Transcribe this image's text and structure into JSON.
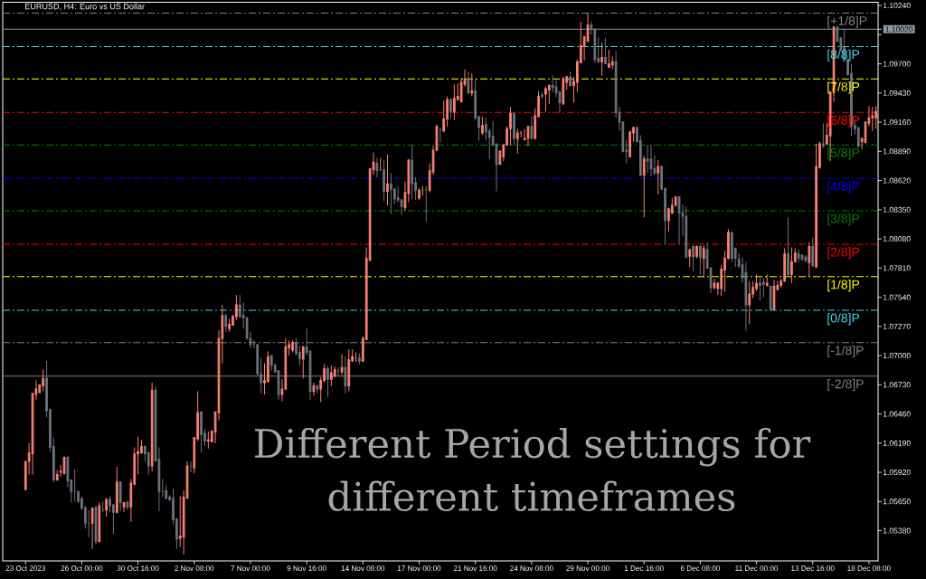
{
  "chart_data": {
    "type": "candlestick",
    "title": "EURUSD, H4: Euro vs US Dollar",
    "annotations": [
      "Different Period settings for different timeframes"
    ],
    "categories": [
      "23 Oct 2023",
      null,
      null,
      null,
      null,
      null,
      null,
      null,
      null,
      null,
      null,
      null,
      null,
      null,
      null,
      null,
      "26 Oct 00:00",
      null,
      null,
      null,
      null,
      null,
      null,
      null,
      null,
      null,
      null,
      null,
      null,
      null,
      null,
      null,
      "30 Oct 16:00",
      null,
      null,
      null,
      null,
      null,
      null,
      null,
      null,
      null,
      null,
      null,
      null,
      null,
      null,
      null,
      "2 Nov 08:00",
      null,
      null,
      null,
      null,
      null,
      null,
      null,
      null,
      null,
      null,
      null,
      null,
      null,
      null,
      null,
      "7 Nov 00:00",
      null,
      null,
      null,
      null,
      null,
      null,
      null,
      null,
      null,
      null,
      null,
      null,
      null,
      null,
      null,
      "9 Nov 16:00",
      null,
      null,
      null,
      null,
      null,
      null,
      null,
      null,
      null,
      null,
      null,
      null,
      null,
      null,
      null,
      "14 Nov 08:00",
      null,
      null,
      null,
      null,
      null,
      null,
      null,
      null,
      null,
      null,
      null,
      null,
      null,
      null,
      null,
      "17 Nov 00:00",
      null,
      null,
      null,
      null,
      null,
      null,
      null,
      null,
      null,
      null,
      null,
      null,
      null,
      null,
      null,
      "21 Nov 16:00",
      null,
      null,
      null,
      null,
      null,
      null,
      null,
      null,
      null,
      null,
      null,
      null,
      null,
      null,
      null,
      "24 Nov 08:00",
      null,
      null,
      null,
      null,
      null,
      null,
      null,
      null,
      null,
      null,
      null,
      null,
      null,
      null,
      null,
      "29 Nov 00:00",
      null,
      null,
      null,
      null,
      null,
      null,
      null,
      null,
      null,
      null,
      null,
      null,
      null,
      null,
      null,
      "1 Dec 16:00",
      null,
      null,
      null,
      null,
      null,
      null,
      null,
      null,
      null,
      null,
      null,
      null,
      null,
      null,
      null,
      "6 Dec 08:00",
      null,
      null,
      null,
      null,
      null,
      null,
      null,
      null,
      null,
      null,
      null,
      null,
      null,
      null,
      null,
      "11 Dec 00:00",
      null,
      null,
      null,
      null,
      null,
      null,
      null,
      null,
      null,
      null,
      null,
      null,
      null,
      null,
      null,
      "13 Dec 16:00",
      null,
      null,
      null,
      null,
      null,
      null,
      null,
      null,
      null,
      null,
      null,
      null,
      null,
      null,
      null,
      "18 Dec 08:00",
      null,
      null
    ],
    "ohlc": [
      [
        1.0576,
        1.0602,
        1.0576,
        1.0602
      ],
      [
        1.0602,
        1.0619,
        1.059,
        1.061
      ],
      [
        1.0609,
        1.0665,
        1.059,
        1.0665
      ],
      [
        1.0664,
        1.0677,
        1.0659,
        1.0669
      ],
      [
        1.0666,
        1.0673,
        1.0665,
        1.0673
      ],
      [
        1.0672,
        1.0687,
        1.0667,
        1.0679
      ],
      [
        1.0679,
        1.0695,
        1.0643,
        1.0649
      ],
      [
        1.065,
        1.0651,
        1.0611,
        1.0615
      ],
      [
        1.0616,
        1.0624,
        1.0583,
        1.0585
      ],
      [
        1.0585,
        1.0594,
        1.0584,
        1.059
      ],
      [
        1.0592,
        1.0599,
        1.0588,
        1.0593
      ],
      [
        1.0591,
        1.0606,
        1.059,
        1.0606
      ],
      [
        1.0606,
        1.0606,
        1.0578,
        1.0584
      ],
      [
        1.0585,
        1.0585,
        1.0564,
        1.0574
      ],
      [
        1.0574,
        1.0595,
        1.0565,
        1.0574
      ],
      [
        1.0574,
        1.0575,
        1.0564,
        1.0565
      ],
      [
        1.0568,
        1.0569,
        1.0557,
        1.0559
      ],
      [
        1.0559,
        1.0561,
        1.054,
        1.0545
      ],
      [
        1.0545,
        1.0557,
        1.0532,
        1.0545
      ],
      [
        1.0545,
        1.0559,
        1.0521,
        1.0559
      ],
      [
        1.056,
        1.056,
        1.0525,
        1.0528
      ],
      [
        1.0528,
        1.0564,
        1.0527,
        1.0561
      ],
      [
        1.0557,
        1.0565,
        1.0555,
        1.0557
      ],
      [
        1.0557,
        1.0568,
        1.0551,
        1.0567
      ],
      [
        1.0567,
        1.057,
        1.0555,
        1.0561
      ],
      [
        1.0562,
        1.0562,
        1.0535,
        1.0555
      ],
      [
        1.0555,
        1.0597,
        1.0554,
        1.0583
      ],
      [
        1.0583,
        1.0583,
        1.0556,
        1.0564
      ],
      [
        1.056,
        1.0564,
        1.0555,
        1.0564
      ],
      [
        1.0564,
        1.0566,
        1.0557,
        1.056
      ],
      [
        1.056,
        1.0586,
        1.0546,
        1.0582
      ],
      [
        1.0581,
        1.0615,
        1.058,
        1.0609
      ],
      [
        1.0609,
        1.0625,
        1.059,
        1.0611
      ],
      [
        1.061,
        1.0622,
        1.0609,
        1.0616
      ],
      [
        1.0616,
        1.0617,
        1.0602,
        1.0609
      ],
      [
        1.061,
        1.0611,
        1.059,
        1.0598
      ],
      [
        1.0598,
        1.0675,
        1.0593,
        1.0668
      ],
      [
        1.0668,
        1.0671,
        1.0601,
        1.0603
      ],
      [
        1.0604,
        1.0615,
        1.0556,
        1.0574
      ],
      [
        1.0574,
        1.0586,
        1.0569,
        1.0574
      ],
      [
        1.0575,
        1.058,
        1.0567,
        1.0568
      ],
      [
        1.0569,
        1.0571,
        1.0565,
        1.0567
      ],
      [
        1.0568,
        1.0577,
        1.0544,
        1.0548
      ],
      [
        1.0549,
        1.0549,
        1.0521,
        1.053
      ],
      [
        1.0531,
        1.057,
        1.0523,
        1.0533
      ],
      [
        1.0532,
        1.0575,
        1.0516,
        1.0569
      ],
      [
        1.0568,
        1.0602,
        1.0568,
        1.0598
      ],
      [
        1.0597,
        1.0602,
        1.0592,
        1.0597
      ],
      [
        1.0596,
        1.0625,
        1.0591,
        1.0624
      ],
      [
        1.0623,
        1.0667,
        1.0621,
        1.0647
      ],
      [
        1.0648,
        1.0648,
        1.061,
        1.0627
      ],
      [
        1.0628,
        1.0632,
        1.0616,
        1.0621
      ],
      [
        1.0621,
        1.063,
        1.0614,
        1.0622
      ],
      [
        1.062,
        1.0631,
        1.062,
        1.063
      ],
      [
        1.0629,
        1.0648,
        1.0619,
        1.0648
      ],
      [
        1.0647,
        1.0724,
        1.064,
        1.0716
      ],
      [
        1.0716,
        1.0747,
        1.0693,
        1.0737
      ],
      [
        1.0737,
        1.0739,
        1.0722,
        1.0727
      ],
      [
        1.0725,
        1.0734,
        1.0722,
        1.0729
      ],
      [
        1.0728,
        1.0738,
        1.0728,
        1.0736
      ],
      [
        1.0736,
        1.0756,
        1.0733,
        1.0747
      ],
      [
        1.0747,
        1.0756,
        1.0735,
        1.0736
      ],
      [
        1.0737,
        1.0749,
        1.0725,
        1.0735
      ],
      [
        1.0735,
        1.0736,
        1.0715,
        1.0716
      ],
      [
        1.0716,
        1.0722,
        1.0707,
        1.071
      ],
      [
        1.071,
        1.0714,
        1.0707,
        1.071
      ],
      [
        1.071,
        1.071,
        1.0682,
        1.0683
      ],
      [
        1.0683,
        1.0698,
        1.0665,
        1.0675
      ],
      [
        1.0675,
        1.0693,
        1.0664,
        1.0677
      ],
      [
        1.0676,
        1.0704,
        1.0675,
        1.0699
      ],
      [
        1.07,
        1.07,
        1.0686,
        1.0691
      ],
      [
        1.0691,
        1.0693,
        1.0684,
        1.0685
      ],
      [
        1.0686,
        1.0686,
        1.0659,
        1.0664
      ],
      [
        1.0664,
        1.0678,
        1.0658,
        1.0669
      ],
      [
        1.0669,
        1.0716,
        1.0668,
        1.0708
      ],
      [
        1.0707,
        1.0714,
        1.07,
        1.071
      ],
      [
        1.0705,
        1.0714,
        1.0703,
        1.0712
      ],
      [
        1.0712,
        1.0716,
        1.07,
        1.0702
      ],
      [
        1.0703,
        1.0709,
        1.0691,
        1.0697
      ],
      [
        1.0697,
        1.0709,
        1.0679,
        1.0708
      ],
      [
        1.0708,
        1.0725,
        1.07,
        1.0703
      ],
      [
        1.0704,
        1.0705,
        1.0659,
        1.0667
      ],
      [
        1.0667,
        1.0675,
        1.0663,
        1.0672
      ],
      [
        1.0672,
        1.0673,
        1.0665,
        1.0669
      ],
      [
        1.0669,
        1.068,
        1.0657,
        1.0677
      ],
      [
        1.0677,
        1.0692,
        1.0675,
        1.0688
      ],
      [
        1.0688,
        1.069,
        1.0662,
        1.0678
      ],
      [
        1.0678,
        1.0691,
        1.0672,
        1.0684
      ],
      [
        1.0681,
        1.069,
        1.068,
        1.0687
      ],
      [
        1.0686,
        1.0689,
        1.0681,
        1.0686
      ],
      [
        1.0685,
        1.0701,
        1.0682,
        1.0689
      ],
      [
        1.0689,
        1.0699,
        1.0665,
        1.0672
      ],
      [
        1.0672,
        1.0706,
        1.0667,
        1.0696
      ],
      [
        1.0695,
        1.0706,
        1.0694,
        1.0699
      ],
      [
        1.0698,
        1.0703,
        1.0694,
        1.0698
      ],
      [
        1.0698,
        1.0702,
        1.0692,
        1.0695
      ],
      [
        1.0695,
        1.0718,
        1.0694,
        1.0716
      ],
      [
        1.0715,
        1.08,
        1.0714,
        1.079
      ],
      [
        1.0788,
        1.0873,
        1.0788,
        1.0873
      ],
      [
        1.0872,
        1.0888,
        1.0867,
        1.0879
      ],
      [
        1.0878,
        1.0883,
        1.0865,
        1.0871
      ],
      [
        1.0872,
        1.0883,
        1.0871,
        1.0872
      ],
      [
        1.0872,
        1.0881,
        1.0843,
        1.0852
      ],
      [
        1.0852,
        1.0886,
        1.0839,
        1.0859
      ],
      [
        1.0859,
        1.0869,
        1.0831,
        1.0854
      ],
      [
        1.0854,
        1.0855,
        1.084,
        1.0845
      ],
      [
        1.0846,
        1.0856,
        1.0842,
        1.0844
      ],
      [
        1.0844,
        1.0845,
        1.083,
        1.0838
      ],
      [
        1.0837,
        1.0861,
        1.0834,
        1.0851
      ],
      [
        1.085,
        1.0882,
        1.0842,
        1.0881
      ],
      [
        1.0881,
        1.0895,
        1.0845,
        1.0859
      ],
      [
        1.086,
        1.0865,
        1.0844,
        1.0853
      ],
      [
        1.0846,
        1.0855,
        1.0844,
        1.0853
      ],
      [
        1.0853,
        1.0857,
        1.0848,
        1.0853
      ],
      [
        1.0853,
        1.0857,
        1.0824,
        1.0853
      ],
      [
        1.0853,
        1.0878,
        1.0851,
        1.0871
      ],
      [
        1.087,
        1.0894,
        1.0867,
        1.089
      ],
      [
        1.089,
        1.0914,
        1.0889,
        1.0912
      ],
      [
        1.0909,
        1.0911,
        1.0897,
        1.0909
      ],
      [
        1.0908,
        1.0936,
        1.0907,
        1.0919
      ],
      [
        1.0919,
        1.094,
        1.0912,
        1.0937
      ],
      [
        1.0937,
        1.0938,
        1.092,
        1.0926
      ],
      [
        1.0926,
        1.0951,
        1.0918,
        1.0938
      ],
      [
        1.0937,
        1.0952,
        1.0936,
        1.094
      ],
      [
        1.0935,
        1.0957,
        1.0934,
        1.0953
      ],
      [
        1.0951,
        1.0965,
        1.0949,
        1.0956
      ],
      [
        1.0956,
        1.0963,
        1.0942,
        1.0943
      ],
      [
        1.0943,
        1.0961,
        1.094,
        1.0945
      ],
      [
        1.0945,
        1.0956,
        1.0918,
        1.092
      ],
      [
        1.0921,
        1.0922,
        1.0899,
        1.0911
      ],
      [
        1.0906,
        1.0921,
        1.0904,
        1.0913
      ],
      [
        1.0914,
        1.092,
        1.0899,
        1.0907
      ],
      [
        1.0908,
        1.091,
        1.0882,
        1.0902
      ],
      [
        1.0903,
        1.0917,
        1.0894,
        1.0895
      ],
      [
        1.0896,
        1.0896,
        1.0852,
        1.0877
      ],
      [
        1.0877,
        1.089,
        1.0877,
        1.0889
      ],
      [
        1.0884,
        1.0896,
        1.088,
        1.0895
      ],
      [
        1.0895,
        1.0912,
        1.0894,
        1.091
      ],
      [
        1.091,
        1.093,
        1.0895,
        1.0924
      ],
      [
        1.0924,
        1.0924,
        1.0896,
        1.0901
      ],
      [
        1.0901,
        1.091,
        1.0887,
        1.0906
      ],
      [
        1.0906,
        1.0908,
        1.0902,
        1.0906
      ],
      [
        1.09,
        1.091,
        1.0899,
        1.0901
      ],
      [
        1.0901,
        1.0912,
        1.0894,
        1.0912
      ],
      [
        1.0912,
        1.0921,
        1.09,
        1.0901
      ],
      [
        1.0901,
        1.0929,
        1.09,
        1.0922
      ],
      [
        1.0921,
        1.0945,
        1.0921,
        1.094
      ],
      [
        1.0941,
        1.0944,
        1.0938,
        1.094
      ],
      [
        1.0942,
        1.0949,
        1.0926,
        1.0947
      ],
      [
        1.0946,
        1.0951,
        1.0933,
        1.095
      ],
      [
        1.095,
        1.0959,
        1.0944,
        1.0948
      ],
      [
        1.0949,
        1.0956,
        1.0939,
        1.0943
      ],
      [
        1.0944,
        1.0945,
        1.0925,
        1.0934
      ],
      [
        1.0933,
        1.0958,
        1.0932,
        1.0956
      ],
      [
        1.0953,
        1.0959,
        1.0946,
        1.0958
      ],
      [
        1.0958,
        1.0963,
        1.0949,
        1.095
      ],
      [
        1.095,
        1.0958,
        1.0934,
        1.0954
      ],
      [
        1.0953,
        1.0974,
        1.0944,
        1.0972
      ],
      [
        1.0971,
        1.1009,
        1.0971,
        1.0987
      ],
      [
        1.0986,
        1.0996,
        1.0973,
        1.0995
      ],
      [
        1.0991,
        1.1017,
        1.099,
        1.1006
      ],
      [
        1.1006,
        1.1009,
        1.0997,
        1.1002
      ],
      [
        1.1002,
        1.1002,
        1.0971,
        1.0974
      ],
      [
        1.0975,
        1.0995,
        1.0971,
        1.0972
      ],
      [
        1.0972,
        1.099,
        1.0959,
        1.0976
      ],
      [
        1.0976,
        1.0994,
        1.097,
        1.097
      ],
      [
        1.0967,
        1.0983,
        1.0966,
        1.097
      ],
      [
        1.0969,
        1.0977,
        1.0965,
        1.0972
      ],
      [
        1.0972,
        1.0982,
        1.092,
        1.0925
      ],
      [
        1.0925,
        1.093,
        1.0908,
        1.0916
      ],
      [
        1.0916,
        1.0917,
        1.0888,
        1.0889
      ],
      [
        1.089,
        1.09,
        1.0878,
        1.0889
      ],
      [
        1.0884,
        1.0908,
        1.0884,
        1.0907
      ],
      [
        1.0906,
        1.0912,
        1.0898,
        1.0911
      ],
      [
        1.0911,
        1.0912,
        1.0897,
        1.0898
      ],
      [
        1.0899,
        1.0904,
        1.0866,
        1.0867
      ],
      [
        1.0867,
        1.0885,
        1.0828,
        1.0882
      ],
      [
        1.0882,
        1.0895,
        1.0869,
        1.088
      ],
      [
        1.0882,
        1.0895,
        1.0866,
        1.0873
      ],
      [
        1.0873,
        1.0885,
        1.0867,
        1.0869
      ],
      [
        1.0869,
        1.0881,
        1.0849,
        1.0875
      ],
      [
        1.0875,
        1.0876,
        1.0853,
        1.0854
      ],
      [
        1.0855,
        1.0855,
        1.0803,
        1.0825
      ],
      [
        1.0825,
        1.0837,
        1.0815,
        1.0836
      ],
      [
        1.0832,
        1.0846,
        1.0831,
        1.0839
      ],
      [
        1.0839,
        1.0847,
        1.0838,
        1.0847
      ],
      [
        1.0847,
        1.0847,
        1.0803,
        1.0832
      ],
      [
        1.0832,
        1.084,
        1.0811,
        1.0829
      ],
      [
        1.0829,
        1.0838,
        1.079,
        1.0791
      ],
      [
        1.0792,
        1.0799,
        1.0782,
        1.0798
      ],
      [
        1.0801,
        1.0802,
        1.0778,
        1.0791
      ],
      [
        1.0792,
        1.0802,
        1.079,
        1.0801
      ],
      [
        1.0801,
        1.0802,
        1.0775,
        1.0791
      ],
      [
        1.079,
        1.0802,
        1.0772,
        1.0799
      ],
      [
        1.0798,
        1.0805,
        1.078,
        1.0781
      ],
      [
        1.0781,
        1.0782,
        1.0758,
        1.0763
      ],
      [
        1.0763,
        1.0771,
        1.0761,
        1.0767
      ],
      [
        1.0762,
        1.0768,
        1.0756,
        1.0767
      ],
      [
        1.0762,
        1.0784,
        1.0755,
        1.078
      ],
      [
        1.0779,
        1.0797,
        1.0759,
        1.079
      ],
      [
        1.079,
        1.0817,
        1.0789,
        1.0814
      ],
      [
        1.0814,
        1.0814,
        1.0787,
        1.079
      ],
      [
        1.0799,
        1.08,
        1.0782,
        1.079
      ],
      [
        1.0789,
        1.0795,
        1.0781,
        1.0783
      ],
      [
        1.0784,
        1.0791,
        1.0767,
        1.0772
      ],
      [
        1.0777,
        1.0787,
        1.0723,
        1.0747
      ],
      [
        1.0747,
        1.0769,
        1.0729,
        1.0757
      ],
      [
        1.0757,
        1.0769,
        1.0753,
        1.0763
      ],
      [
        1.0762,
        1.0775,
        1.076,
        1.0767
      ],
      [
        1.0767,
        1.0774,
        1.0751,
        1.0765
      ],
      [
        1.0768,
        1.0772,
        1.0754,
        1.0766
      ],
      [
        1.0765,
        1.0775,
        1.0764,
        1.0767
      ],
      [
        1.0764,
        1.0765,
        1.0742,
        1.0743
      ],
      [
        1.0743,
        1.077,
        1.0742,
        1.0764
      ],
      [
        1.0761,
        1.0769,
        1.0761,
        1.0765
      ],
      [
        1.0765,
        1.0771,
        1.0763,
        1.0769
      ],
      [
        1.0769,
        1.0799,
        1.0768,
        1.0794
      ],
      [
        1.0794,
        1.0828,
        1.0774,
        1.0775
      ],
      [
        1.0775,
        1.08,
        1.0767,
        1.0787
      ],
      [
        1.0787,
        1.0799,
        1.0786,
        1.0795
      ],
      [
        1.0794,
        1.0798,
        1.0786,
        1.079
      ],
      [
        1.0793,
        1.0794,
        1.0788,
        1.0789
      ],
      [
        1.0791,
        1.0793,
        1.0786,
        1.0788
      ],
      [
        1.0786,
        1.0805,
        1.0773,
        1.0801
      ],
      [
        1.0801,
        1.0809,
        1.0782,
        1.0783
      ],
      [
        1.0782,
        1.0896,
        1.0781,
        1.0875
      ],
      [
        1.0874,
        1.0898,
        1.0873,
        1.0896
      ],
      [
        1.0896,
        1.0915,
        1.0892,
        1.0894
      ],
      [
        1.0896,
        1.0915,
        1.0895,
        1.0904
      ],
      [
        1.0903,
        1.0945,
        1.088,
        1.0944
      ],
      [
        1.0943,
        1.1005,
        1.0935,
        1.1004
      ],
      [
        1.1004,
        1.1005,
        1.099,
        1.0991
      ],
      [
        1.0994,
        1.0995,
        1.0982,
        1.0983
      ],
      [
        1.0986,
        1.1003,
        1.0972,
        1.0973
      ],
      [
        1.0974,
        1.0975,
        1.0959,
        1.096
      ],
      [
        1.0961,
        1.097,
        1.0903,
        1.0912
      ],
      [
        1.0913,
        1.0917,
        1.0905,
        1.091
      ],
      [
        1.0911,
        1.0911,
        1.0892,
        1.0894
      ],
      [
        1.0898,
        1.0902,
        1.0891,
        1.0901
      ],
      [
        1.0897,
        1.0917,
        1.0897,
        1.0916
      ],
      [
        1.0915,
        1.0931,
        1.0912,
        1.092
      ],
      [
        1.092,
        1.093,
        1.0908,
        1.0922
      ],
      [
        1.092,
        1.0931,
        1.091,
        1.0926
      ]
    ],
    "colors": [
      "#fa8072",
      "#fa8072",
      "#fa8072",
      "#fa8072",
      "#fa8072",
      "#fa8072",
      "#6c737d",
      "#6c737d",
      "#6c737d",
      "#fa8072",
      "#fa8072",
      "#fa8072",
      "#6c737d",
      "#6c737d",
      "#6c737d",
      "#6c737d",
      "#6c737d",
      "#6c737d",
      "#6c737d",
      "#fa8072",
      "#6c737d",
      "#fa8072",
      "#6c737d",
      "#fa8072",
      "#6c737d",
      "#6c737d",
      "#fa8072",
      "#6c737d",
      "#fa8072",
      "#6c737d",
      "#fa8072",
      "#fa8072",
      "#fa8072",
      "#fa8072",
      "#6c737d",
      "#6c737d",
      "#fa8072",
      "#6c737d",
      "#6c737d",
      "#6c737d",
      "#6c737d",
      "#6c737d",
      "#6c737d",
      "#6c737d",
      "#fa8072",
      "#fa8072",
      "#fa8072",
      "#6c737d",
      "#fa8072",
      "#fa8072",
      "#6c737d",
      "#6c737d",
      "#fa8072",
      "#fa8072",
      "#fa8072",
      "#fa8072",
      "#fa8072",
      "#6c737d",
      "#fa8072",
      "#fa8072",
      "#fa8072",
      "#6c737d",
      "#6c737d",
      "#6c737d",
      "#6c737d",
      "#6c737d",
      "#6c737d",
      "#6c737d",
      "#fa8072",
      "#fa8072",
      "#6c737d",
      "#6c737d",
      "#6c737d",
      "#fa8072",
      "#fa8072",
      "#fa8072",
      "#fa8072",
      "#6c737d",
      "#6c737d",
      "#fa8072",
      "#6c737d",
      "#6c737d",
      "#fa8072",
      "#6c737d",
      "#fa8072",
      "#fa8072",
      "#6c737d",
      "#fa8072",
      "#fa8072",
      "#6c737d",
      "#fa8072",
      "#6c737d",
      "#fa8072",
      "#fa8072",
      "#fa8072",
      "#6c737d",
      "#fa8072",
      "#fa8072",
      "#fa8072",
      "#fa8072",
      "#6c737d",
      "#fa8072",
      "#6c737d",
      "#fa8072",
      "#6c737d",
      "#6c737d",
      "#6c737d",
      "#6c737d",
      "#fa8072",
      "#fa8072",
      "#6c737d",
      "#6c737d",
      "#fa8072",
      "#fa8072",
      "#6c737d",
      "#fa8072",
      "#fa8072",
      "#fa8072",
      "#6c737d",
      "#fa8072",
      "#fa8072",
      "#6c737d",
      "#fa8072",
      "#fa8072",
      "#fa8072",
      "#fa8072",
      "#6c737d",
      "#fa8072",
      "#6c737d",
      "#6c737d",
      "#fa8072",
      "#6c737d",
      "#6c737d",
      "#6c737d",
      "#6c737d",
      "#fa8072",
      "#fa8072",
      "#fa8072",
      "#fa8072",
      "#6c737d",
      "#fa8072",
      "#fa8072",
      "#fa8072",
      "#fa8072",
      "#6c737d",
      "#fa8072",
      "#fa8072",
      "#6c737d",
      "#fa8072",
      "#fa8072",
      "#6c737d",
      "#6c737d",
      "#6c737d",
      "#fa8072",
      "#fa8072",
      "#6c737d",
      "#fa8072",
      "#fa8072",
      "#fa8072",
      "#fa8072",
      "#fa8072",
      "#6c737d",
      "#6c737d",
      "#6c737d",
      "#fa8072",
      "#6c737d",
      "#fa8072",
      "#fa8072",
      "#6c737d",
      "#6c737d",
      "#6c737d",
      "#6c737d",
      "#fa8072",
      "#fa8072",
      "#6c737d",
      "#6c737d",
      "#fa8072",
      "#6c737d",
      "#6c737d",
      "#6c737d",
      "#fa8072",
      "#6c737d",
      "#6c737d",
      "#fa8072",
      "#fa8072",
      "#fa8072",
      "#6c737d",
      "#6c737d",
      "#6c737d",
      "#fa8072",
      "#6c737d",
      "#fa8072",
      "#6c737d",
      "#fa8072",
      "#6c737d",
      "#6c737d",
      "#fa8072",
      "#fa8072",
      "#fa8072",
      "#fa8072",
      "#fa8072",
      "#6c737d",
      "#6c737d",
      "#6c737d",
      "#6c737d",
      "#6c737d",
      "#fa8072",
      "#fa8072",
      "#fa8072",
      "#6c737d",
      "#6c737d",
      "#fa8072",
      "#6c737d",
      "#fa8072",
      "#fa8072",
      "#fa8072",
      "#fa8072",
      "#6c737d",
      "#fa8072",
      "#fa8072",
      "#6c737d",
      "#6c737d",
      "#6c737d",
      "#fa8072",
      "#6c737d",
      "#fa8072",
      "#fa8072",
      "#6c737d",
      "#fa8072",
      "#fa8072",
      "#fa8072",
      "#6c737d",
      "#6c737d",
      "#6c737d",
      "#6c737d",
      "#6c737d",
      "#6c737d",
      "#6c737d",
      "#fa8072",
      "#fa8072",
      "#fa8072",
      "#fa8072",
      "#fa8072"
    ],
    "ylim": [
      1.051,
      1.1027
    ],
    "yticks": [
      {
        "value": 1.0538,
        "label": "1.05380"
      },
      {
        "value": 1.0565,
        "label": "1.05650"
      },
      {
        "value": 1.0592,
        "label": "1.05920"
      },
      {
        "value": 1.0619,
        "label": "1.06190"
      },
      {
        "value": 1.0646,
        "label": "1.06460"
      },
      {
        "value": 1.0673,
        "label": "1.06730"
      },
      {
        "value": 1.07,
        "label": "1.07000"
      },
      {
        "value": 1.0727,
        "label": "1.07270"
      },
      {
        "value": 1.0754,
        "label": "1.07540"
      },
      {
        "value": 1.0781,
        "label": "1.07810"
      },
      {
        "value": 1.0808,
        "label": "1.08080"
      },
      {
        "value": 1.0835,
        "label": "1.08350"
      },
      {
        "value": 1.0862,
        "label": "1.08620"
      },
      {
        "value": 1.0889,
        "label": "1.08890"
      },
      {
        "value": 1.0916,
        "label": "1.09160"
      },
      {
        "value": 1.0943,
        "label": "1.09430"
      },
      {
        "value": 1.097,
        "label": "1.09700"
      },
      {
        "value": 1.0997,
        "label": null
      },
      {
        "value": 1.1002,
        "label": "1.10020"
      },
      {
        "value": 1.1024,
        "label": "1.10240"
      }
    ],
    "ref_lines": [
      {
        "axis": "y",
        "value": 1.1017,
        "label": "[+1/8]P",
        "color": "#808080",
        "line_style": "dashdot"
      },
      {
        "axis": "y",
        "value": 1.0986,
        "label": "[8/8]P",
        "color": "#3fd6e6",
        "line_style": "dashdot"
      },
      {
        "axis": "y",
        "value": 1.0956,
        "label": "[7/8]P",
        "color": "#ffff00",
        "line_style": "dashdot"
      },
      {
        "axis": "y",
        "value": 1.0925,
        "label": "[6/8]P",
        "color": "#ff0000",
        "line_style": "dashdot"
      },
      {
        "axis": "y",
        "value": 1.0895,
        "label": "[5/8]P",
        "color": "#008000",
        "line_style": "dashdot"
      },
      {
        "axis": "y",
        "value": 1.0864,
        "label": "[4/8]P",
        "color": "#0000ff",
        "line_style": "dashdot"
      },
      {
        "axis": "y",
        "value": 1.0834,
        "label": "[3/8]P",
        "color": "#008000",
        "line_style": "dashdot"
      },
      {
        "axis": "y",
        "value": 1.0803,
        "label": "[2/8]P",
        "color": "#ff0000",
        "line_style": "dashdot"
      },
      {
        "axis": "y",
        "value": 1.0773,
        "label": "[1/8]P",
        "color": "#ffff00",
        "line_style": "dashdot"
      },
      {
        "axis": "y",
        "value": 1.0742,
        "label": "[0/8]P",
        "color": "#3fd6e6",
        "line_style": "dashdot"
      },
      {
        "axis": "y",
        "value": 1.0712,
        "label": "[-1/8]P",
        "color": "#808080",
        "line_style": "dashdot"
      },
      {
        "axis": "y",
        "value": 1.0681,
        "label": "[-2/8]P",
        "color": "#808080",
        "line_style": "solid"
      },
      {
        "axis": "y",
        "value": 1.1002,
        "color": "#8c9aa8",
        "line_style": "solid"
      }
    ]
  }
}
